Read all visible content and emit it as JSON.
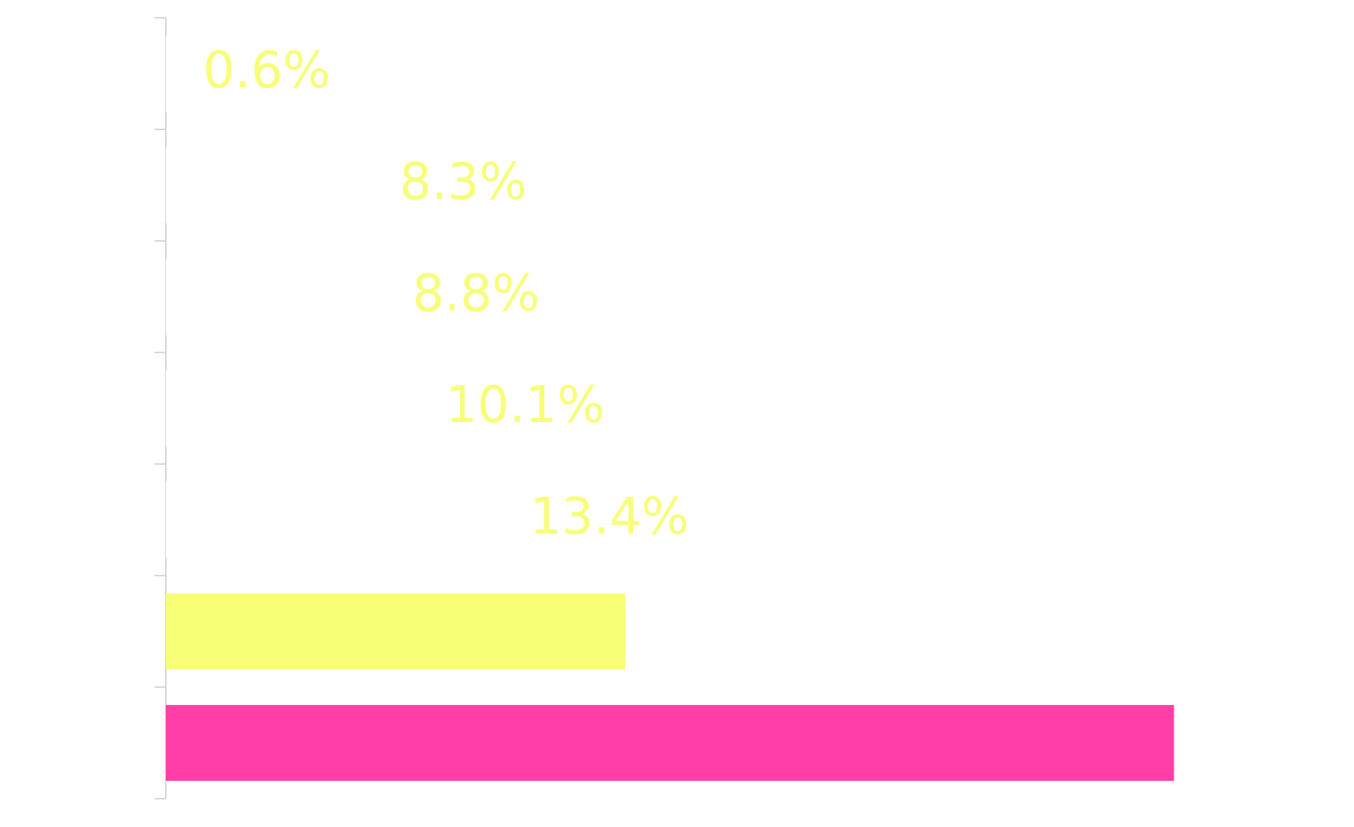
{
  "chart_data": {
    "type": "barh",
    "categories": [
      null,
      null,
      null,
      null,
      null,
      null,
      null
    ],
    "values": [
      0.6,
      8.3,
      8.8,
      10.1,
      13.4,
      18,
      39.5
    ],
    "value_labels": [
      "0.6%",
      "8.3%",
      "8.8%",
      "10.1%",
      "13.4%",
      null,
      null
    ],
    "colors": [
      "#ffffff",
      "#ffffff",
      "#ffffff",
      "#ffffff",
      "#ffffff",
      "#f7ff77",
      "#ff3fa7"
    ],
    "label_color": "#f7ff77",
    "xlim": [
      0,
      45
    ]
  }
}
